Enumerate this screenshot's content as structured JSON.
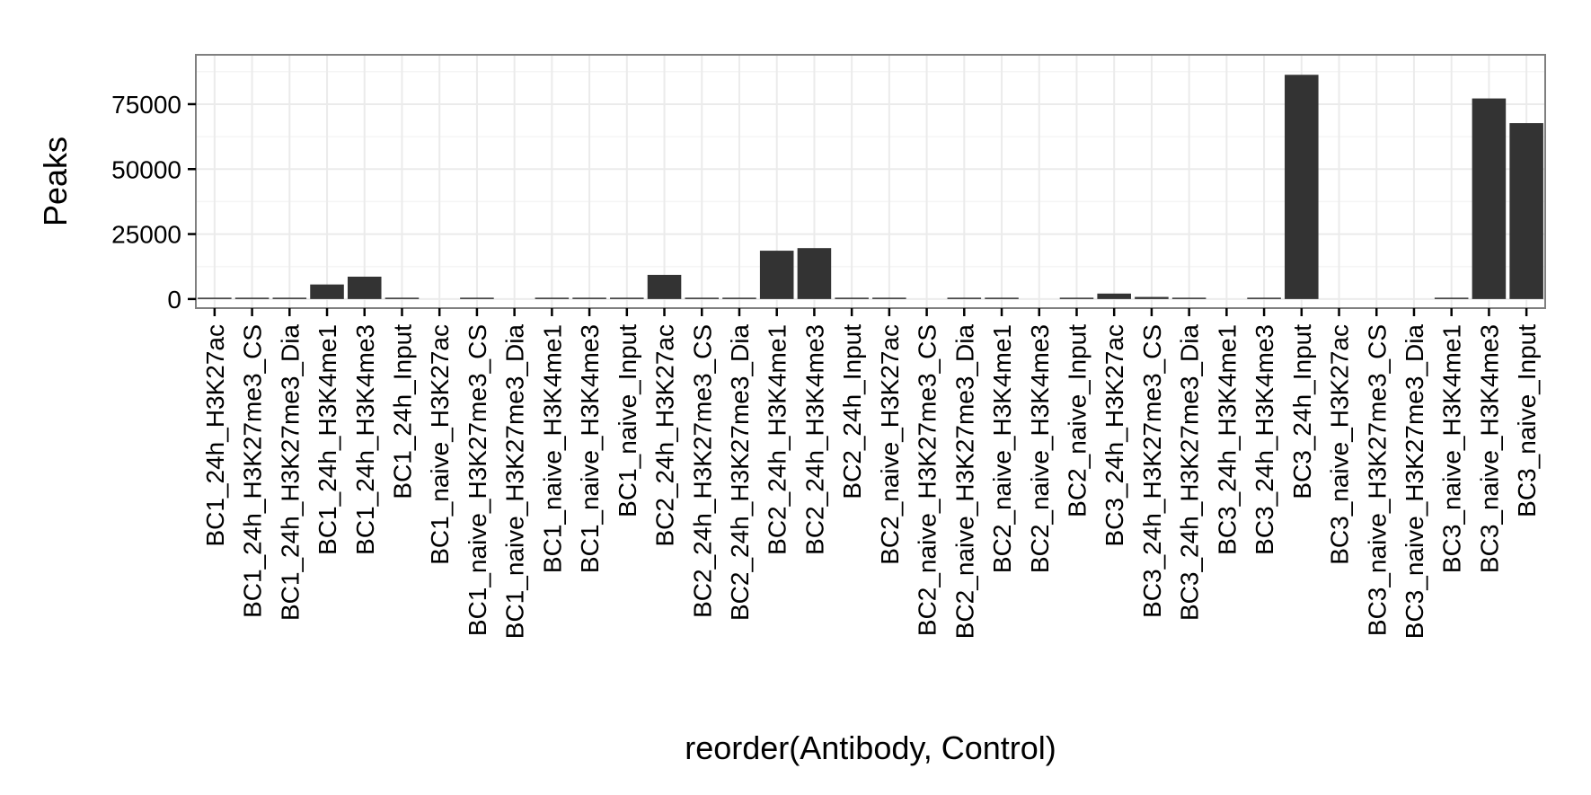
{
  "chart_data": {
    "type": "bar",
    "xlabel": "reorder(Antibody, Control)",
    "ylabel": "Peaks",
    "ylim": [
      -3500,
      94000
    ],
    "yticks": [
      0,
      25000,
      50000,
      75000
    ],
    "grid": true,
    "colors": {
      "bar": "#333333",
      "panel_border": "#7f7f7f",
      "grid_major": "#ebebeb",
      "grid_minor": "#f5f5f5"
    },
    "categories": [
      "BC1_24h_H3K27ac",
      "BC1_24h_H3K27me3_CS",
      "BC1_24h_H3K27me3_Dia",
      "BC1_24h_H3K4me1",
      "BC1_24h_H3K4me3",
      "BC1_24h_Input",
      "BC1_naive_H3K27ac",
      "BC1_naive_H3K27me3_CS",
      "BC1_naive_H3K27me3_Dia",
      "BC1_naive_H3K4me1",
      "BC1_naive_H3K4me3",
      "BC1_naive_Input",
      "BC2_24h_H3K27ac",
      "BC2_24h_H3K27me3_CS",
      "BC2_24h_H3K27me3_Dia",
      "BC2_24h_H3K4me1",
      "BC2_24h_H3K4me3",
      "BC2_24h_Input",
      "BC2_naive_H3K27ac",
      "BC2_naive_H3K27me3_CS",
      "BC2_naive_H3K27me3_Dia",
      "BC2_naive_H3K4me1",
      "BC2_naive_H3K4me3",
      "BC2_naive_Input",
      "BC3_24h_H3K27ac",
      "BC3_24h_H3K27me3_CS",
      "BC3_24h_H3K27me3_Dia",
      "BC3_24h_H3K4me1",
      "BC3_24h_H3K4me3",
      "BC3_24h_Input",
      "BC3_naive_H3K27ac",
      "BC3_naive_H3K27me3_CS",
      "BC3_naive_H3K27me3_Dia",
      "BC3_naive_H3K4me1",
      "BC3_naive_H3K4me3",
      "BC3_naive_Input"
    ],
    "values": [
      200,
      150,
      150,
      5600,
      8600,
      150,
      0,
      150,
      0,
      400,
      400,
      400,
      9300,
      300,
      300,
      18600,
      19600,
      400,
      400,
      0,
      150,
      150,
      0,
      150,
      2100,
      800,
      150,
      0,
      150,
      86300,
      0,
      0,
      0,
      400,
      77200,
      67700
    ]
  }
}
